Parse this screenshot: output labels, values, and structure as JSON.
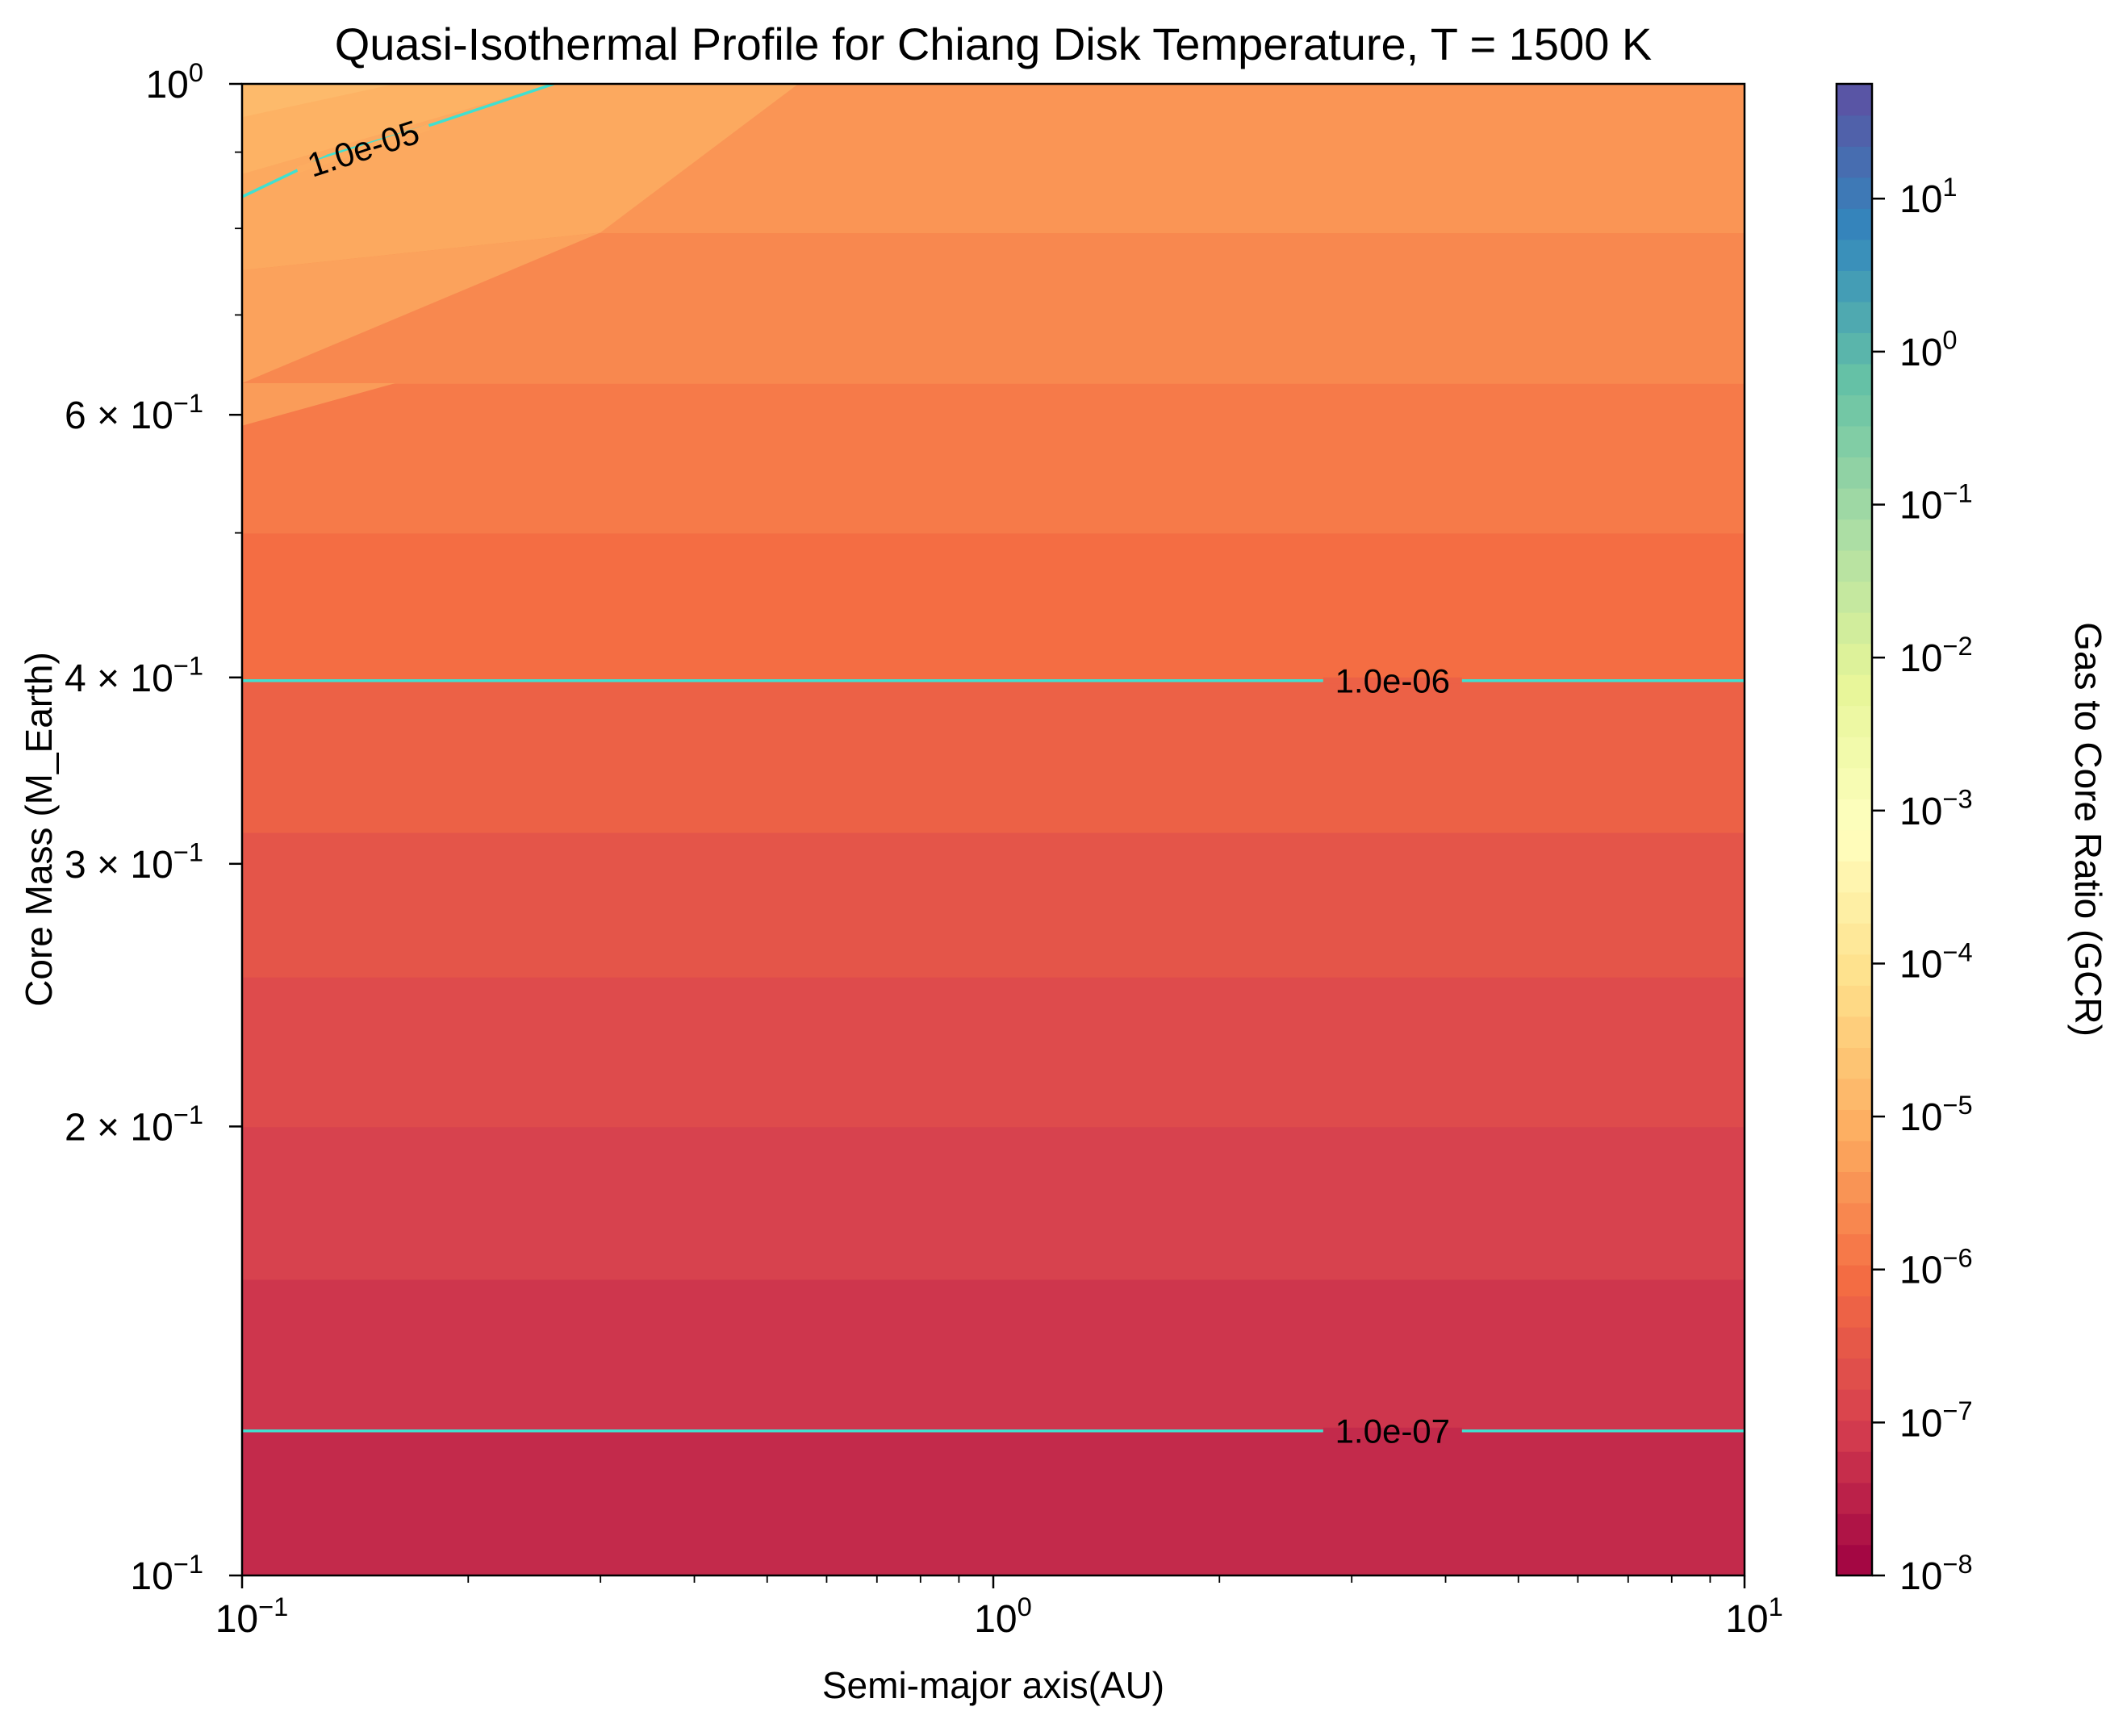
{
  "chart_data": {
    "type": "heatmap",
    "title": "Quasi-Isothermal Profile for Chiang Disk Temperature, T = 1500 K",
    "xlabel": "Semi-major axis(AU)",
    "ylabel": "Core Mass (M_Earth)",
    "xscale": "log",
    "yscale": "log",
    "xlim": [
      0.1,
      10
    ],
    "ylim": [
      0.1,
      1
    ],
    "x_ticks": [
      {
        "value": 0.1,
        "base": "10",
        "exp": "−1"
      },
      {
        "value": 1,
        "base": "10",
        "exp": "0"
      },
      {
        "value": 10,
        "base": "10",
        "exp": "1"
      }
    ],
    "y_ticks": [
      {
        "value": 0.1,
        "base": "10",
        "exp": "−1"
      },
      {
        "value": 0.2,
        "base": "2 × 10",
        "exp": "−1"
      },
      {
        "value": 0.3,
        "base": "3 × 10",
        "exp": "−1"
      },
      {
        "value": 0.4,
        "base": "4 × 10",
        "exp": "−1"
      },
      {
        "value": 0.6,
        "base": "6 × 10",
        "exp": "−1"
      },
      {
        "value": 1,
        "base": "10",
        "exp": "0"
      }
    ],
    "colormap": "Spectral",
    "color_scale": "log",
    "colorbar": {
      "label": "Gas to Core Ratio (GCR)",
      "vmin_exp": -8,
      "vmax_exp": 1.75,
      "levels": 48,
      "ticks": [
        {
          "exp": -8,
          "base": "10",
          "label": "−8"
        },
        {
          "exp": -7,
          "base": "10",
          "label": "−7"
        },
        {
          "exp": -6,
          "base": "10",
          "label": "−6"
        },
        {
          "exp": -5,
          "base": "10",
          "label": "−5"
        },
        {
          "exp": -4,
          "base": "10",
          "label": "−4"
        },
        {
          "exp": -3,
          "base": "10",
          "label": "−3"
        },
        {
          "exp": -2,
          "base": "10",
          "label": "−2"
        },
        {
          "exp": -1,
          "base": "10",
          "label": "−1"
        },
        {
          "exp": 0,
          "base": "10",
          "label": "0"
        },
        {
          "exp": 1,
          "base": "10",
          "label": "1"
        }
      ]
    },
    "bands": [
      {
        "log10_gcr": -7.35,
        "y_low": 0.1,
        "y_high": 0.125
      },
      {
        "log10_gcr": -7.15,
        "y_low": 0.125,
        "y_high": 0.158
      },
      {
        "log10_gcr": -6.95,
        "y_low": 0.158,
        "y_high": 0.2
      },
      {
        "log10_gcr": -6.75,
        "y_low": 0.2,
        "y_high": 0.252
      },
      {
        "log10_gcr": -6.55,
        "y_low": 0.252,
        "y_high": 0.315
      },
      {
        "log10_gcr": -6.3,
        "y_low": 0.315,
        "y_high": 0.398
      },
      {
        "log10_gcr": -6.05,
        "y_low": 0.398,
        "y_high": 0.5
      },
      {
        "log10_gcr": -5.85,
        "y_low": 0.5,
        "y_high": 0.63
      },
      {
        "log10_gcr": -5.65,
        "y_low": 0.63,
        "y_high": 0.795
      },
      {
        "log10_gcr": -5.45,
        "y_low": 0.795,
        "y_high": 1.0
      }
    ],
    "corner_region": [
      {
        "log10_gcr": -5.35,
        "points": [
          [
            0.1,
            0.59
          ],
          [
            0.16,
            0.63
          ],
          [
            0.1,
            0.63
          ]
        ]
      },
      {
        "log10_gcr": -5.25,
        "points": [
          [
            0.1,
            0.63
          ],
          [
            0.3,
            0.795
          ],
          [
            0.1,
            0.75
          ]
        ]
      },
      {
        "log10_gcr": -5.15,
        "points": [
          [
            0.1,
            0.75
          ],
          [
            0.3,
            0.795
          ],
          [
            0.55,
            1.0
          ],
          [
            0.1,
            1.0
          ]
        ]
      },
      {
        "log10_gcr": -5.0,
        "points": [
          [
            0.1,
            0.87
          ],
          [
            0.26,
            1.0
          ],
          [
            0.1,
            1.0
          ]
        ]
      },
      {
        "log10_gcr": -4.85,
        "points": [
          [
            0.1,
            0.95
          ],
          [
            0.16,
            1.0
          ],
          [
            0.1,
            1.0
          ]
        ]
      }
    ],
    "contour_color": "#40e0d0",
    "contours": [
      {
        "label": "1.0e-05",
        "points": [
          [
            0.1,
            0.84
          ],
          [
            0.13,
            0.895
          ],
          [
            0.18,
            0.94
          ],
          [
            0.26,
            1.0
          ]
        ],
        "label_at": [
          0.145,
          0.905
        ],
        "label_angle": -18
      },
      {
        "label": "1.0e-06",
        "points": [
          [
            0.1,
            0.398
          ],
          [
            10,
            0.398
          ]
        ],
        "label_at": [
          3.4,
          0.398
        ],
        "label_angle": 0
      },
      {
        "label": "1.0e-07",
        "points": [
          [
            0.1,
            0.125
          ],
          [
            10,
            0.125
          ]
        ],
        "label_at": [
          3.4,
          0.125
        ],
        "label_angle": 0
      }
    ]
  }
}
